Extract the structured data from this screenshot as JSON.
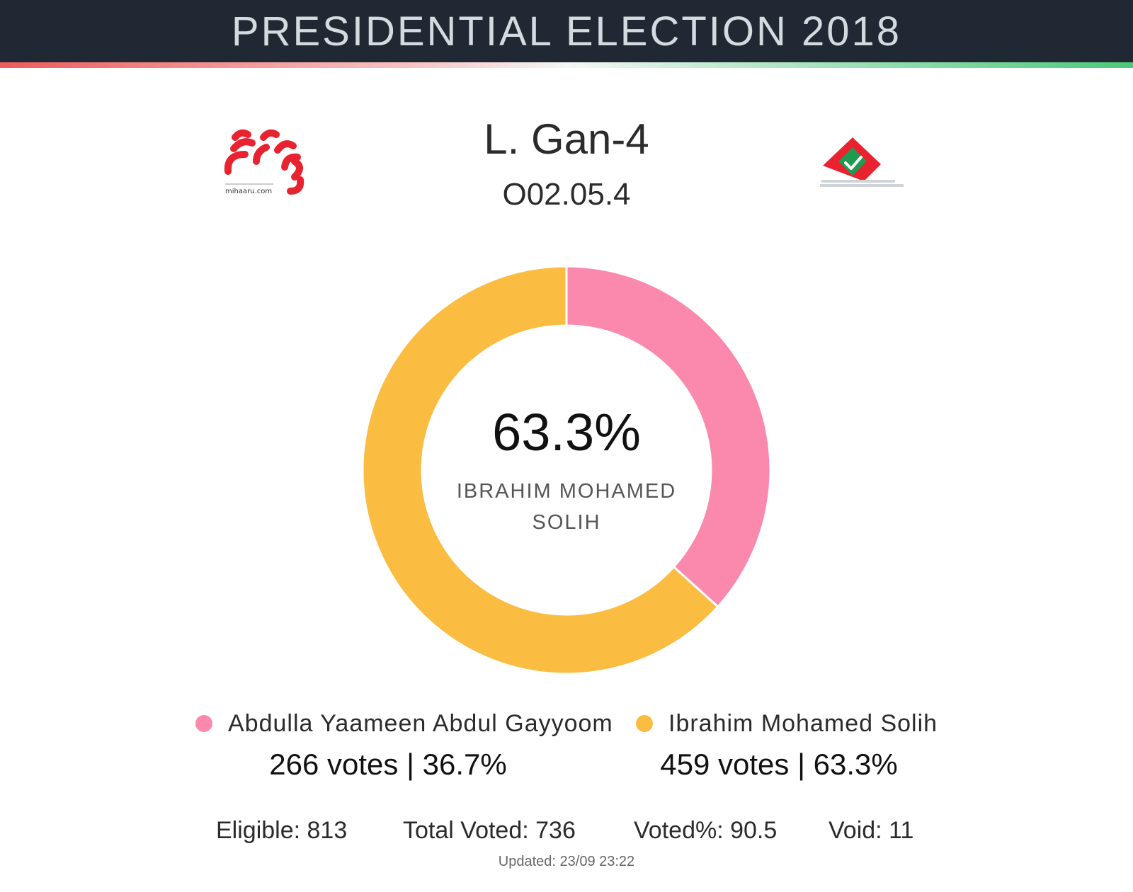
{
  "header": {
    "title": "PRESIDENTIAL ELECTION 2018"
  },
  "logos": {
    "left_text": "mihaaru.com"
  },
  "station": {
    "name": "L. Gan-4",
    "code": "O02.05.4"
  },
  "center": {
    "percent": "63.3%",
    "name": "IBRAHIM MOHAMED SOLIH"
  },
  "colors": {
    "header_bg": "#202833",
    "accent_red": "#ee5b5b",
    "accent_green": "#4cc97a",
    "yaameen": "#fb88ad",
    "solih": "#fbbc42"
  },
  "candidates": [
    {
      "name": "Abdulla Yaameen Abdul Gayyoom",
      "stats": "266 votes | 36.7%"
    },
    {
      "name": "Ibrahim Mohamed Solih",
      "stats": "459 votes | 63.3%"
    }
  ],
  "stats": {
    "eligible": "Eligible: 813",
    "total_voted": "Total Voted: 736",
    "voted_pct": "Voted%: 90.5",
    "void": "Void: 11"
  },
  "updated": "Updated: 23/09 23:22",
  "chart_data": {
    "type": "pie",
    "categories": [
      "Abdulla Yaameen Abdul Gayyoom",
      "Ibrahim Mohamed Solih"
    ],
    "values": [
      266,
      459
    ],
    "percentages": [
      36.7,
      63.3
    ],
    "colors": [
      "#fb88ad",
      "#fbbc42"
    ],
    "donut": true,
    "start_angle_deg": 0,
    "direction": "clockwise",
    "legend": "bottom"
  }
}
